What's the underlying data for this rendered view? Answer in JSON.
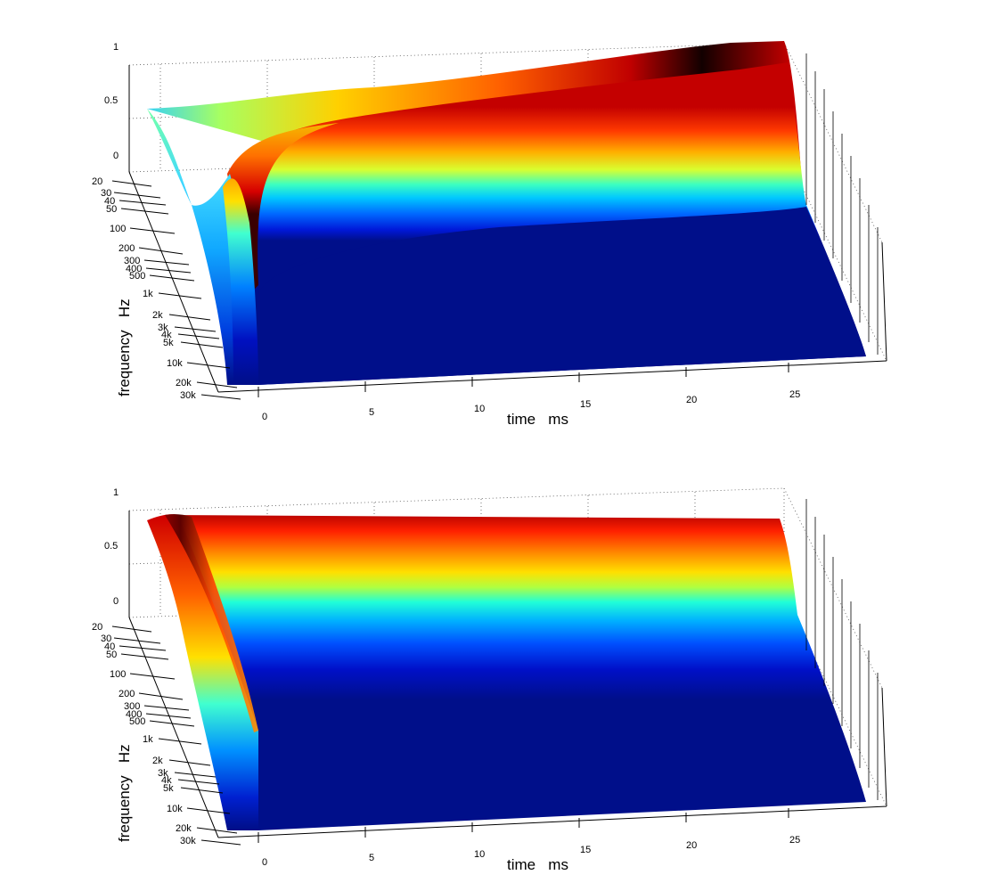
{
  "chart_data": [
    {
      "type": "surface",
      "panel": "top",
      "title": "",
      "xlabel": "time   ms",
      "ylabel": "frequency   Hz",
      "zlabel": "",
      "x_ticks": [
        "0",
        "5",
        "10",
        "15",
        "20",
        "25"
      ],
      "y_ticks": [
        "20",
        "30",
        "40",
        "50",
        "100",
        "200",
        "300",
        "400",
        "500",
        "1k",
        "2k",
        "3k",
        "4k",
        "5k",
        "10k",
        "20k",
        "30k"
      ],
      "z_ticks": [
        "0",
        "0.5",
        "1"
      ],
      "xlim": [
        -1.5,
        29
      ],
      "zlim": [
        0,
        1
      ],
      "colormap": "jet",
      "grid": true,
      "description_values": {
        "low_freq_level_at_start": 0.55,
        "low_freq_level_at_end": 1.0,
        "peak_time_ms": 0
      }
    },
    {
      "type": "surface",
      "panel": "bottom",
      "title": "",
      "xlabel": "time   ms",
      "ylabel": "frequency   Hz",
      "zlabel": "",
      "x_ticks": [
        "0",
        "5",
        "10",
        "15",
        "20",
        "25"
      ],
      "y_ticks": [
        "20",
        "30",
        "40",
        "50",
        "100",
        "200",
        "300",
        "400",
        "500",
        "1k",
        "2k",
        "3k",
        "4k",
        "5k",
        "10k",
        "20k",
        "30k"
      ],
      "z_ticks": [
        "0",
        "0.5",
        "1"
      ],
      "xlim": [
        -1.5,
        29
      ],
      "zlim": [
        0,
        1
      ],
      "colormap": "jet",
      "grid": true,
      "description_values": {
        "low_freq_level_at_start": 0.9,
        "low_freq_level_at_end": 0.82,
        "peak_time_ms": 0
      }
    }
  ],
  "colors": {
    "jet_dark_blue": "#000f8a",
    "jet_blue": "#0050ff",
    "jet_cyan": "#00d8ff",
    "jet_yellow": "#ffd000",
    "jet_red": "#e00000",
    "jet_dark": "#100000"
  }
}
